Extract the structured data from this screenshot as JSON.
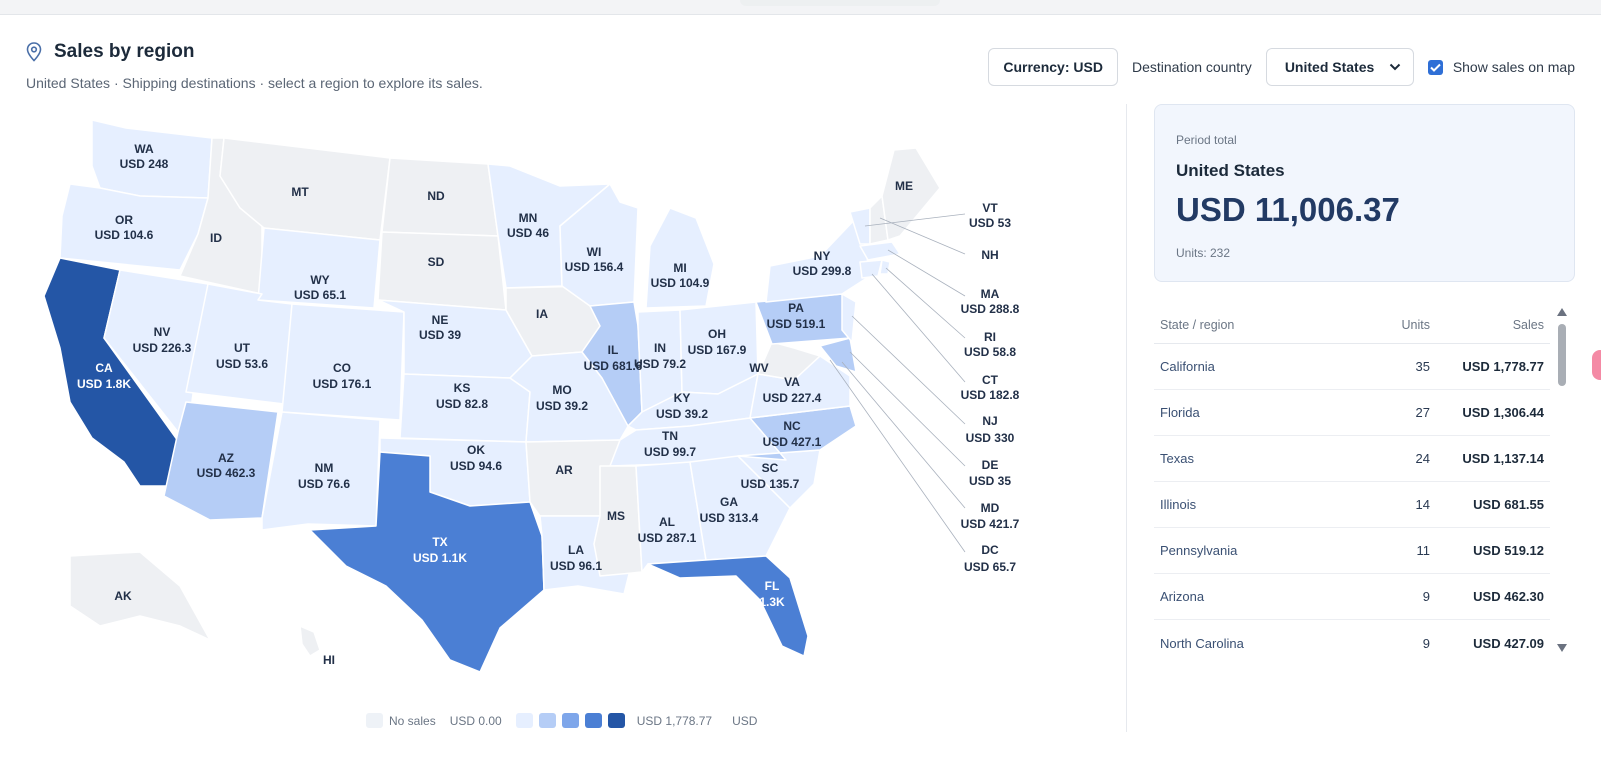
{
  "header": {
    "title": "Sales by region",
    "subtitle": "United States · Shipping destinations · select a region to explore its sales."
  },
  "controls": {
    "currency_label": "Currency: USD",
    "destination_label": "Destination country",
    "destination_value": "United States",
    "show_on_map_label": "Show sales on map",
    "show_on_map_checked": true
  },
  "total": {
    "label": "Period total",
    "country": "United States",
    "value": "USD 11,006.37",
    "units": "Units: 232"
  },
  "table": {
    "headers": [
      "State / region",
      "Units",
      "Sales"
    ],
    "rows": [
      {
        "state": "California",
        "units": "35",
        "sales": "USD 1,778.77"
      },
      {
        "state": "Florida",
        "units": "27",
        "sales": "USD 1,306.44"
      },
      {
        "state": "Texas",
        "units": "24",
        "sales": "USD 1,137.14"
      },
      {
        "state": "Illinois",
        "units": "14",
        "sales": "USD 681.55"
      },
      {
        "state": "Pennsylvania",
        "units": "11",
        "sales": "USD 519.12"
      },
      {
        "state": "Arizona",
        "units": "9",
        "sales": "USD 462.30"
      },
      {
        "state": "North Carolina",
        "units": "9",
        "sales": "USD 427.09"
      }
    ]
  },
  "legend": {
    "no_sales": "No sales",
    "min": "USD 0.00",
    "max": "USD 1,778.77",
    "unit": "USD",
    "colors": [
      "#e6efff",
      "#b5cdf6",
      "#7ea6ea",
      "#4b7fd4",
      "#2456a6"
    ]
  },
  "colors": {
    "nosales": "#eef0f3",
    "accent": "#2f6fd6"
  },
  "map_labels": {
    "WA": "USD 248",
    "OR": "USD 104.6",
    "MT": "",
    "ID": "",
    "WY": "USD 65.1",
    "ND": "",
    "SD": "",
    "MN": "USD 46",
    "WI": "USD 156.4",
    "MI": "USD 104.9",
    "NV": "USD 226.3",
    "UT": "USD 53.6",
    "CO": "USD 176.1",
    "NE": "USD 39",
    "IA": "",
    "IL": "USD 681.6",
    "IN": "USD 79.2",
    "OH": "USD 167.9",
    "PA": "USD 519.1",
    "NY": "USD 299.8",
    "CA": "USD 1.8K",
    "AZ": "USD 462.3",
    "NM": "USD 76.6",
    "KS": "USD 82.8",
    "MO": "USD 39.2",
    "KY": "USD 39.2",
    "WV": "",
    "VA": "USD 227.4",
    "TX": "USD 1.1K",
    "OK": "USD 94.6",
    "AR": "",
    "TN": "USD 99.7",
    "NC": "USD 427.1",
    "SC": "USD 135.7",
    "LA": "USD 96.1",
    "MS": "",
    "AL": "USD 287.1",
    "GA": "USD 313.4",
    "FL": "1.3K",
    "ME": "",
    "AK": "",
    "HI": ""
  },
  "callouts": [
    {
      "code": "VT",
      "value": "USD 53"
    },
    {
      "code": "NH",
      "value": ""
    },
    {
      "code": "MA",
      "value": "USD 288.8"
    },
    {
      "code": "RI",
      "value": "USD 58.8"
    },
    {
      "code": "CT",
      "value": "USD 182.8"
    },
    {
      "code": "NJ",
      "value": "USD 330"
    },
    {
      "code": "DE",
      "value": "USD 35"
    },
    {
      "code": "MD",
      "value": "USD 421.7"
    },
    {
      "code": "DC",
      "value": "USD 65.7"
    }
  ]
}
